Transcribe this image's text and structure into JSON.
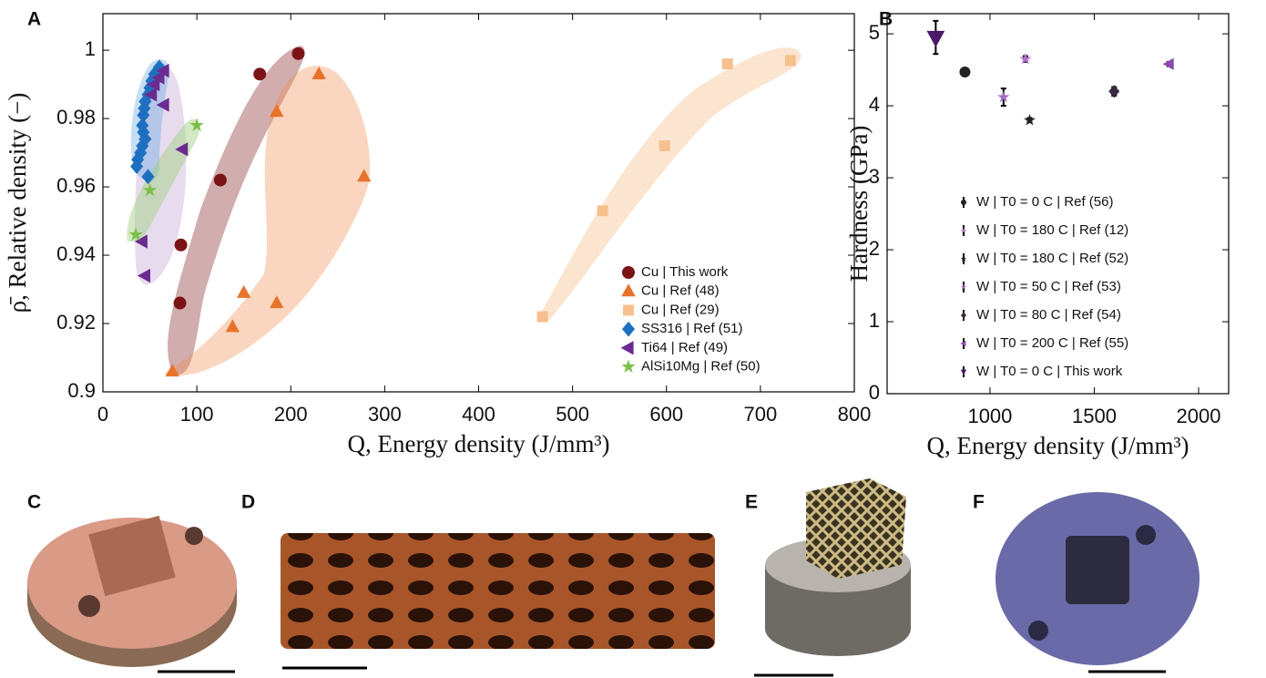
{
  "chart_data": [
    {
      "type": "scatter",
      "panel": "A",
      "xlabel": "Q, Energy density (J/mm³)",
      "ylabel": "ρ̄, Relative density (−)",
      "xlim": [
        0,
        800
      ],
      "xticks": [
        0,
        100,
        200,
        300,
        400,
        500,
        600,
        700,
        800
      ],
      "ylim": [
        0.9,
        1.0107
      ],
      "yticks": [
        0.9,
        0.92,
        0.94,
        0.96,
        0.98,
        1
      ],
      "legend": "lower right",
      "series": [
        {
          "name": "Cu | This work",
          "color": "#7b1416",
          "marker": "circle",
          "x": [
            208,
            167,
            125,
            83,
            82
          ],
          "values": [
            0.999,
            0.993,
            0.962,
            0.943,
            0.926
          ]
        },
        {
          "name": "Cu | Ref (48)",
          "color": "#e8722a",
          "marker": "triangle-up",
          "x": [
            230,
            185,
            278,
            150,
            185,
            138,
            74
          ],
          "values": [
            0.993,
            0.982,
            0.963,
            0.929,
            0.926,
            0.919,
            0.906
          ]
        },
        {
          "name": "Cu | Ref (29)",
          "color": "#f6bf8c",
          "marker": "square",
          "x": [
            732,
            665,
            598,
            532,
            468
          ],
          "values": [
            0.997,
            0.996,
            0.972,
            0.953,
            0.922
          ]
        },
        {
          "name": "SS316 | Ref (51)",
          "color": "#1f6fc0",
          "marker": "diamond",
          "x": [
            60,
            55,
            52,
            50,
            48,
            45,
            44,
            43,
            42,
            43,
            45,
            42,
            40,
            37,
            36,
            48
          ],
          "values": [
            0.995,
            0.993,
            0.991,
            0.989,
            0.987,
            0.985,
            0.983,
            0.981,
            0.978,
            0.976,
            0.974,
            0.972,
            0.97,
            0.968,
            0.966,
            0.963
          ]
        },
        {
          "name": "Ti64 | Ref (49)",
          "color": "#6a2c91",
          "marker": "triangle-left",
          "x": [
            65,
            60,
            55,
            52,
            65,
            85,
            42,
            45
          ],
          "values": [
            0.994,
            0.992,
            0.99,
            0.987,
            0.984,
            0.971,
            0.944,
            0.934
          ]
        },
        {
          "name": "AlSi10Mg | Ref (50)",
          "color": "#7dbf4a",
          "marker": "star",
          "x": [
            100,
            50,
            35
          ],
          "values": [
            0.978,
            0.959,
            0.946
          ]
        }
      ]
    },
    {
      "type": "errorbar",
      "panel": "B",
      "xlabel": "Q, Energy density (J/mm³)",
      "ylabel": "Hardness (GPa)",
      "xlim": [
        507,
        2144
      ],
      "xticks": [
        1000,
        1500,
        2000
      ],
      "ylim": [
        0,
        5.28
      ],
      "yticks": [
        0,
        1,
        2,
        3,
        4,
        5
      ],
      "legend": "lower left",
      "series": [
        {
          "name": "W | T0 = 0 C | Ref (56)",
          "color": "#222222",
          "marker": "circle",
          "x": [
            880
          ],
          "values": [
            4.47
          ],
          "errors": [
            0.03
          ]
        },
        {
          "name": "W | T0 = 180 C | Ref (12)",
          "color": "#b070c8",
          "marker": "star",
          "x": [
            1170
          ],
          "values": [
            4.65
          ],
          "errors": [
            0.04
          ]
        },
        {
          "name": "W | T0 = 180 C | Ref (52)",
          "color": "#222222",
          "marker": "star",
          "x": [
            1190
          ],
          "values": [
            3.8
          ],
          "errors": [
            0.03
          ]
        },
        {
          "name": "W | T0 = 50 C | Ref (53)",
          "color": "#a56bc2",
          "marker": "star",
          "x": [
            1065
          ],
          "values": [
            4.12
          ],
          "errors": [
            0.12
          ]
        },
        {
          "name": "W | T0 = 80 C | Ref (54)",
          "color": "#3a2a40",
          "marker": "diamond",
          "x": [
            1595
          ],
          "values": [
            4.2
          ],
          "errors": [
            0.06
          ]
        },
        {
          "name": "W | T0 = 200 C | Ref (55)",
          "color": "#8a4bb0",
          "marker": "triangle-left",
          "x": [
            1860
          ],
          "values": [
            4.58
          ],
          "errors": [
            0.03
          ]
        },
        {
          "name": "W | T0 = 0 C | This work",
          "color": "#4a1a6a",
          "marker": "triangle-down",
          "x": [
            740
          ],
          "values": [
            4.95
          ],
          "errors": [
            0.23
          ]
        }
      ]
    }
  ],
  "panels": {
    "c": "C",
    "d": "D",
    "e": "E",
    "f": "F"
  }
}
